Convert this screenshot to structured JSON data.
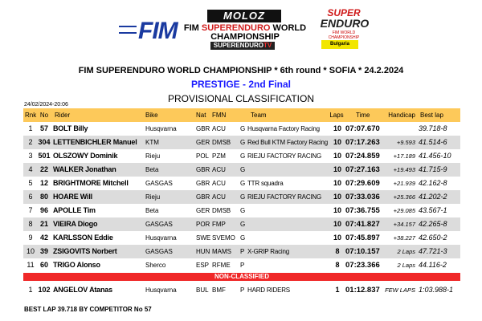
{
  "logos": {
    "fim": "FIM",
    "moloz": "MOLOZ",
    "champ_prefix": "FIM ",
    "champ_red": "SUPERENDURO",
    "champ_suffix": " WORLD",
    "champ_line2": "CHAMPIONSHIP",
    "setv": "SUPERENDURO",
    "setv_tv": "TV",
    "super": "SUPER",
    "enduro": "ENDURO",
    "wc": "FIM WORLD CHAMPIONSHIP",
    "sponsor": "Bulgaria"
  },
  "header": {
    "title": "FIM SUPERENDURO WORLD CHAMPIONSHIP * 6th round * SOFIA * 24.2.2024",
    "race": "PRESTIGE - 2nd Final",
    "classification": "PROVISIONAL CLASSIFICATION",
    "printed": "24/02/2024-20:06"
  },
  "colors": {
    "header_row": "#fdc95a",
    "non_classified": "#f02828",
    "race_title": "#1a1aff"
  },
  "columns": {
    "rnk": "Rnk",
    "no": "No",
    "rider": "Rider",
    "bike": "Bike",
    "nat": "Nat",
    "fmn": "FMN",
    "team": "Team",
    "laps": "Laps",
    "time": "Time",
    "handicap": "Handicap",
    "best": "Best lap"
  },
  "rows": [
    {
      "rnk": "1",
      "no": "57",
      "rider": "BOLT Billy",
      "bike": "Husqvarna",
      "nat": "GBR",
      "fmn": "ACU",
      "cls": "G",
      "team": "Husqvarna Factory Racing",
      "laps": "10",
      "time": "07:07.670",
      "hc": "",
      "best": "39.718-8"
    },
    {
      "rnk": "2",
      "no": "304",
      "rider": "LETTENBICHLER Manuel",
      "bike": "KTM",
      "nat": "GER",
      "fmn": "DMSB",
      "cls": "G",
      "team": "Red Bull KTM Factory Racing",
      "laps": "10",
      "time": "07:17.263",
      "hc": "+9.593",
      "best": "41.514-6"
    },
    {
      "rnk": "3",
      "no": "501",
      "rider": "OLSZOWY Dominik",
      "bike": "Rieju",
      "nat": "POL",
      "fmn": "PZM",
      "cls": "G",
      "team": "RIEJU FACTORY RACING",
      "laps": "10",
      "time": "07:24.859",
      "hc": "+17.189",
      "best": "41.456-10"
    },
    {
      "rnk": "4",
      "no": "22",
      "rider": "WALKER Jonathan",
      "bike": "Beta",
      "nat": "GBR",
      "fmn": "ACU",
      "cls": "G",
      "team": "",
      "laps": "10",
      "time": "07:27.163",
      "hc": "+19.493",
      "best": "41.715-9"
    },
    {
      "rnk": "5",
      "no": "12",
      "rider": "BRIGHTMORE Mitchell",
      "bike": "GASGAS",
      "nat": "GBR",
      "fmn": "ACU",
      "cls": "G",
      "team": "TTR squadra",
      "laps": "10",
      "time": "07:29.609",
      "hc": "+21.939",
      "best": "42.162-8"
    },
    {
      "rnk": "6",
      "no": "80",
      "rider": "HOARE Will",
      "bike": "Rieju",
      "nat": "GBR",
      "fmn": "ACU",
      "cls": "G",
      "team": "RIEJU FACTORY RACING",
      "laps": "10",
      "time": "07:33.036",
      "hc": "+25.366",
      "best": "41.202-2"
    },
    {
      "rnk": "7",
      "no": "96",
      "rider": "APOLLE Tim",
      "bike": "Beta",
      "nat": "GER",
      "fmn": "DMSB",
      "cls": "G",
      "team": "",
      "laps": "10",
      "time": "07:36.755",
      "hc": "+29.085",
      "best": "43.567-1"
    },
    {
      "rnk": "8",
      "no": "21",
      "rider": "VIEIRA Diogo",
      "bike": "GASGAS",
      "nat": "POR",
      "fmn": "FMP",
      "cls": "G",
      "team": "",
      "laps": "10",
      "time": "07:41.827",
      "hc": "+34.157",
      "best": "42.265-8"
    },
    {
      "rnk": "9",
      "no": "42",
      "rider": "KARLSSON Eddie",
      "bike": "Husqvarna",
      "nat": "SWE",
      "fmn": "SVEMO",
      "cls": "G",
      "team": "",
      "laps": "10",
      "time": "07:45.897",
      "hc": "+38.227",
      "best": "42.650-2"
    },
    {
      "rnk": "10",
      "no": "39",
      "rider": "ZSIGOVITS Norbert",
      "bike": "GASGAS",
      "nat": "HUN",
      "fmn": "MAMS",
      "cls": "P",
      "team": "X-GRIP Racing",
      "laps": "8",
      "time": "07:10.157",
      "hc": "2 Laps",
      "best": "47.721-3"
    },
    {
      "rnk": "11",
      "no": "60",
      "rider": "TRIGO Alonso",
      "bike": "Sherco",
      "nat": "ESP",
      "fmn": "RFME",
      "cls": "P",
      "team": "",
      "laps": "8",
      "time": "07:23.366",
      "hc": "2 Laps",
      "best": "44.116-2"
    }
  ],
  "non_classified_label": "NON-CLASSIFIED",
  "non_classified": [
    {
      "rnk": "1",
      "no": "102",
      "rider": "ANGELOV Atanas",
      "bike": "Husqvarna",
      "nat": "BUL",
      "fmn": "BMF",
      "cls": "P",
      "team": "HARD RIDERS",
      "laps": "1",
      "time": "01:12.837",
      "hc": "FEW LAPS",
      "best": "1:03.988-1"
    }
  ],
  "footer": {
    "best_lap": "BEST LAP 39.718 BY COMPETITOR No 57"
  }
}
